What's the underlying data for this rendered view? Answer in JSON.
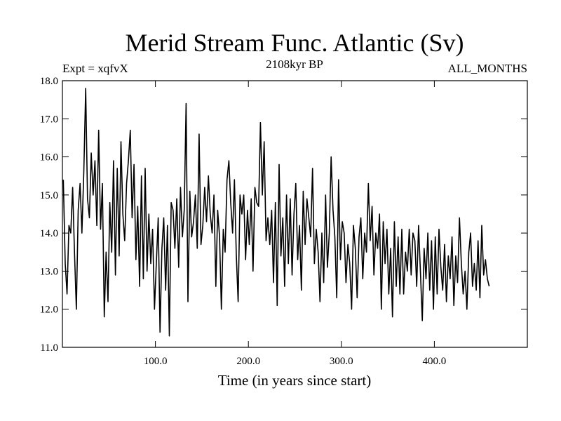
{
  "chart_data": {
    "type": "line",
    "title": "Merid Stream Func. Atlantic (Sv)",
    "subtitle_left": "Expt = xqfvX",
    "subtitle_center": "2108kyr BP",
    "subtitle_right": "ALL_MONTHS",
    "xlabel": "Time (in years since start)",
    "ylabel": "",
    "xlim": [
      0,
      500
    ],
    "ylim": [
      11.0,
      18.0
    ],
    "x_ticks": [
      100,
      200,
      300,
      400
    ],
    "x_tick_labels": [
      "100.0",
      "200.0",
      "300.0",
      "400.0"
    ],
    "y_ticks": [
      11,
      12,
      13,
      14,
      15,
      16,
      17,
      18
    ],
    "y_tick_labels": [
      "11.0",
      "12.0",
      "13.0",
      "14.0",
      "15.0",
      "16.0",
      "17.0",
      "18.0"
    ],
    "series": [
      {
        "name": "Merid Stream Func. Atlantic",
        "x_start": 1,
        "x_step": 2,
        "values": [
          15.4,
          13.2,
          12.4,
          14.2,
          14.0,
          15.2,
          13.5,
          12.0,
          14.6,
          15.3,
          14.0,
          15.6,
          17.8,
          14.9,
          14.4,
          16.1,
          15.0,
          15.9,
          14.2,
          16.7,
          14.1,
          15.3,
          11.8,
          13.5,
          12.2,
          14.8,
          13.5,
          15.9,
          12.9,
          15.7,
          13.4,
          16.4,
          14.5,
          13.8,
          15.3,
          15.9,
          16.7,
          14.4,
          15.8,
          13.3,
          14.7,
          12.6,
          15.5,
          12.8,
          15.7,
          13.0,
          14.5,
          13.2,
          14.1,
          12.0,
          13.2,
          14.4,
          11.4,
          13.6,
          14.4,
          12.5,
          14.2,
          11.3,
          14.8,
          14.6,
          13.6,
          14.9,
          13.1,
          15.2,
          13.9,
          14.6,
          17.4,
          12.2,
          15.1,
          13.9,
          14.3,
          15.0,
          13.6,
          16.6,
          13.7,
          14.2,
          15.2,
          14.3,
          15.5,
          14.5,
          14.0,
          15.0,
          12.6,
          14.6,
          13.9,
          12.0,
          14.1,
          13.5,
          15.4,
          15.9,
          14.8,
          14.0,
          15.4,
          13.4,
          12.2,
          15.0,
          14.5,
          15.0,
          13.3,
          14.6,
          13.7,
          14.9,
          13.0,
          15.2,
          14.8,
          14.7,
          16.9,
          15.0,
          16.4,
          13.8,
          14.4,
          13.7,
          14.6,
          12.7,
          14.8,
          12.1,
          15.8,
          13.4,
          14.4,
          12.6,
          15.0,
          13.2,
          14.9,
          12.9,
          14.5,
          15.3,
          13.3,
          14.2,
          12.5,
          15.1,
          13.7,
          14.9,
          14.4,
          13.9,
          15.7,
          13.2,
          14.1,
          13.5,
          12.2,
          14.0,
          12.7,
          15.0,
          13.1,
          14.0,
          16.0,
          14.6,
          13.9,
          12.3,
          15.4,
          13.3,
          14.3,
          14.0,
          12.7,
          13.7,
          13.2,
          12.0,
          14.2,
          13.6,
          12.3,
          13.9,
          14.4,
          12.8,
          14.0,
          13.5,
          15.3,
          13.8,
          14.7,
          12.9,
          14.0,
          13.6,
          14.5,
          12.0,
          14.3,
          13.2,
          14.1,
          12.4,
          13.6,
          11.8,
          14.3,
          12.6,
          13.9,
          12.4,
          14.1,
          12.4,
          13.5,
          13.0,
          14.1,
          12.9,
          14.0,
          13.8,
          12.6,
          14.2,
          13.0,
          11.7,
          13.6,
          12.8,
          14.0,
          12.5,
          13.8,
          12.0,
          13.9,
          12.4,
          14.1,
          13.1,
          12.5,
          13.7,
          12.2,
          13.4,
          12.8,
          13.9,
          12.1,
          13.4,
          12.7,
          14.4,
          13.2,
          12.4,
          13.0,
          12.0,
          13.5,
          14.0,
          12.6,
          13.2,
          12.5,
          13.8,
          12.3,
          14.2,
          12.9,
          13.3,
          12.8,
          12.6
        ]
      }
    ]
  }
}
